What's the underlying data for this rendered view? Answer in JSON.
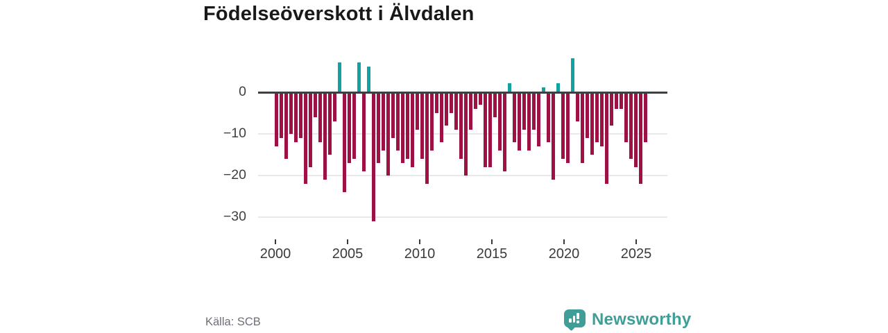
{
  "title": "Födelseöverskott i Älvdalen",
  "source": "Källa: SCB",
  "branding": {
    "name": "Newsworthy"
  },
  "colors": {
    "negative_bar": "#9d1145",
    "positive_bar": "#14a1a1",
    "baseline": "#3c4043",
    "gridline": "#e8e8ea",
    "title_text": "#191919",
    "axis_text": "#3a3a3a",
    "source_text": "#6e6e78",
    "brand_teal": "#3f9e97",
    "background": "#ffffff"
  },
  "chart_data": {
    "type": "bar",
    "title": "Födelseöverskott i Älvdalen",
    "xlabel": "",
    "ylabel": "",
    "ylim": [
      -33,
      9
    ],
    "yticks": [
      0,
      -10,
      -20,
      -30
    ],
    "xticks": [
      "2000",
      "2005",
      "2010",
      "2015",
      "2020",
      "2025"
    ],
    "grid": true,
    "legend": "none",
    "x": [
      "2000-1",
      "2000-2",
      "2000-3",
      "2001-1",
      "2001-2",
      "2001-3",
      "2002-1",
      "2002-2",
      "2002-3",
      "2003-1",
      "2003-2",
      "2003-3",
      "2004-1",
      "2004-2",
      "2004-3",
      "2005-1",
      "2005-2",
      "2005-3",
      "2006-1",
      "2006-2",
      "2006-3",
      "2007-1",
      "2007-2",
      "2007-3",
      "2008-1",
      "2008-2",
      "2008-3",
      "2009-1",
      "2009-2",
      "2009-3",
      "2010-1",
      "2010-2",
      "2010-3",
      "2011-1",
      "2011-2",
      "2011-3",
      "2012-1",
      "2012-2",
      "2012-3",
      "2013-1",
      "2013-2",
      "2013-3",
      "2014-1",
      "2014-2",
      "2014-3",
      "2015-1",
      "2015-2",
      "2015-3",
      "2016-1",
      "2016-2",
      "2016-3",
      "2017-1",
      "2017-2",
      "2017-3",
      "2018-1",
      "2018-2",
      "2018-3",
      "2019-1",
      "2019-2",
      "2019-3",
      "2020-1",
      "2020-2",
      "2020-3",
      "2021-1",
      "2021-2",
      "2021-3",
      "2022-1",
      "2022-2",
      "2022-3",
      "2023-1",
      "2023-2",
      "2023-3",
      "2024-1",
      "2024-2",
      "2024-3",
      "2025-1",
      "2025-2"
    ],
    "values": [
      -13,
      -11,
      -16,
      -10,
      -12,
      -11,
      -22,
      -18,
      -6,
      -12,
      -21,
      -15,
      -7,
      7,
      -24,
      -17,
      -16,
      7,
      -19,
      6,
      -31,
      -17,
      -14,
      -20,
      -11,
      -14,
      -17,
      -16,
      -18,
      -9,
      -16,
      -22,
      -14,
      -5,
      -12,
      -8,
      -5,
      -9,
      -16,
      -20,
      -9,
      -4,
      -3,
      -18,
      -18,
      -6,
      -14,
      -19,
      2,
      -12,
      -14,
      -9,
      -14,
      -9,
      -13,
      1,
      -12,
      -21,
      2,
      -16,
      -17,
      8,
      -7,
      -17,
      -11,
      -15,
      -12,
      -13,
      -22,
      -8,
      -4,
      -4,
      -12,
      -16,
      -18,
      -22,
      -12
    ]
  }
}
